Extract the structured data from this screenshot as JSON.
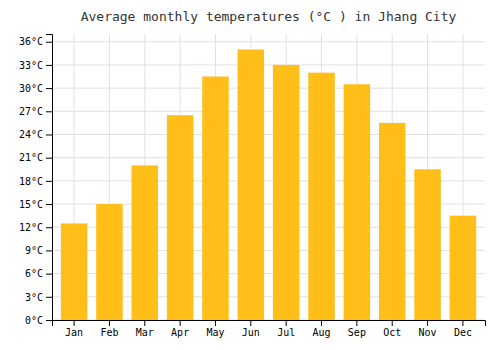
{
  "chart_data": {
    "type": "bar",
    "title": "Average monthly temperatures (°C ) in Jhang City",
    "categories": [
      "Jan",
      "Feb",
      "Mar",
      "Apr",
      "May",
      "Jun",
      "Jul",
      "Aug",
      "Sep",
      "Oct",
      "Nov",
      "Dec"
    ],
    "values": [
      12.5,
      15.0,
      20.0,
      26.5,
      31.5,
      35.0,
      33.0,
      32.0,
      30.5,
      25.5,
      19.5,
      13.5
    ],
    "color": "#FFBE18",
    "ylim": [
      0,
      37
    ],
    "yticks": [
      {
        "value": 0,
        "label": "0°C"
      },
      {
        "value": 3,
        "label": "3°C"
      },
      {
        "value": 6,
        "label": "6°C"
      },
      {
        "value": 9,
        "label": "9°C"
      },
      {
        "value": 12,
        "label": "12°C"
      },
      {
        "value": 15,
        "label": "15°C"
      },
      {
        "value": 18,
        "label": "18°C"
      },
      {
        "value": 21,
        "label": "21°C"
      },
      {
        "value": 24,
        "label": "24°C"
      },
      {
        "value": 27,
        "label": "27°C"
      },
      {
        "value": 30,
        "label": "30°C"
      },
      {
        "value": 33,
        "label": "33°C"
      },
      {
        "value": 36,
        "label": "36°C"
      }
    ],
    "grid": true
  }
}
